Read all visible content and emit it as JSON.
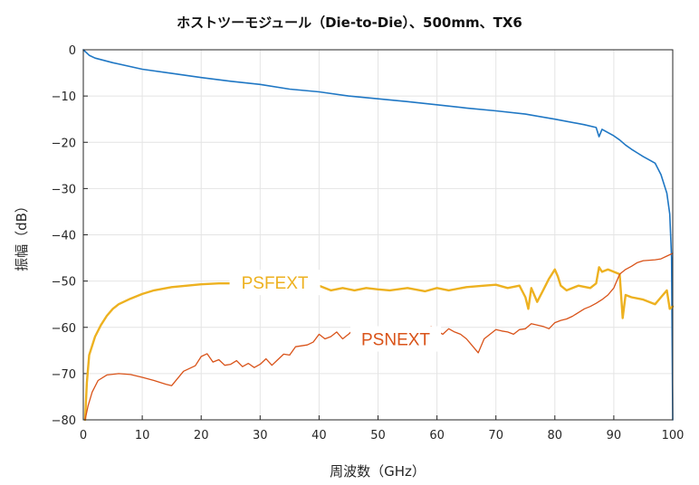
{
  "chart_data": {
    "type": "line",
    "title": "ホストツーモジュール（Die-to-Die）、500mm、TX6",
    "xlabel": "周波数（GHz）",
    "ylabel": "振幅（dB）",
    "xlim": [
      0,
      100
    ],
    "ylim": [
      -80,
      0
    ],
    "xticks": [
      "0",
      "10",
      "20",
      "30",
      "40",
      "50",
      "60",
      "70",
      "80",
      "90",
      "100"
    ],
    "yticks": [
      "0",
      "−10",
      "−20",
      "−30",
      "−40",
      "−50",
      "−60",
      "−70",
      "−80"
    ],
    "grid": true,
    "colors": {
      "il": "#1f77c4",
      "psfext": "#edb120",
      "psnext": "#d95319"
    },
    "annotations": [
      {
        "text": "PSFEXT",
        "series": "psfext",
        "x": 32.5,
        "y": -50.3
      },
      {
        "text": "PSNEXT",
        "series": "psnext",
        "x": 53,
        "y": -62.5
      }
    ],
    "series": [
      {
        "key": "il",
        "color": "#1f77c4",
        "width": 1.6,
        "x": [
          0,
          1,
          2,
          5,
          10,
          15,
          20,
          25,
          30,
          35,
          40,
          45,
          50,
          55,
          60,
          65,
          70,
          75,
          80,
          85,
          87,
          87.5,
          88,
          90,
          91,
          92,
          93,
          94,
          95,
          96,
          97,
          98,
          99,
          99.5,
          99.8,
          100
        ],
        "y": [
          0,
          -1.2,
          -1.8,
          -2.8,
          -4.2,
          -5.1,
          -6.0,
          -6.8,
          -7.5,
          -8.5,
          -9.1,
          -10.0,
          -10.6,
          -11.2,
          -11.9,
          -12.6,
          -13.2,
          -13.9,
          -15.0,
          -16.2,
          -16.8,
          -18.8,
          -17.2,
          -18.6,
          -19.5,
          -20.6,
          -21.5,
          -22.3,
          -23.1,
          -23.8,
          -24.5,
          -27.0,
          -31.0,
          -35.5,
          -45.0,
          -80.0
        ]
      },
      {
        "key": "psfext",
        "color": "#edb120",
        "width": 2.4,
        "x": [
          0.3,
          0.6,
          1,
          2,
          3,
          4,
          5,
          6,
          8,
          10,
          12,
          15,
          20,
          23,
          28,
          35,
          38,
          40,
          42,
          44,
          46,
          48,
          50,
          52,
          55,
          58,
          60,
          62,
          65,
          68,
          70,
          72,
          74,
          75,
          75.5,
          76,
          77,
          78,
          79,
          80,
          80.5,
          81,
          82,
          84,
          86,
          87,
          87.5,
          88,
          89,
          90,
          91,
          91.5,
          92,
          93,
          95,
          97,
          98,
          99,
          99.5,
          100
        ],
        "y": [
          -80,
          -72,
          -66,
          -62,
          -59.5,
          -57.5,
          -56,
          -55,
          -53.8,
          -52.8,
          -52.0,
          -51.3,
          -50.7,
          -50.5,
          -50.5,
          -51.0,
          -51.3,
          -51.0,
          -52.0,
          -51.5,
          -52.0,
          -51.5,
          -51.8,
          -52.0,
          -51.5,
          -52.2,
          -51.5,
          -52.0,
          -51.3,
          -51.0,
          -50.8,
          -51.5,
          -51.0,
          -53.5,
          -56.0,
          -51.5,
          -54.5,
          -52.0,
          -49.5,
          -47.5,
          -49.0,
          -51.0,
          -52.0,
          -51.0,
          -51.5,
          -50.5,
          -47.0,
          -48.0,
          -47.5,
          -48.0,
          -48.5,
          -58.0,
          -53.0,
          -53.5,
          -54.0,
          -55.0,
          -53.5,
          -52.0,
          -56.0,
          -55.5
        ]
      },
      {
        "key": "psnext",
        "color": "#d95319",
        "width": 1.3,
        "x": [
          0.3,
          0.8,
          1.5,
          2.5,
          4,
          6,
          8,
          10,
          12,
          14,
          15,
          17,
          19,
          20,
          21,
          22,
          23,
          24,
          25,
          26,
          27,
          28,
          29,
          30,
          31,
          32,
          33,
          34,
          35,
          36,
          37,
          38,
          39,
          40,
          41,
          42,
          43,
          44,
          45,
          46,
          47,
          48,
          49,
          50,
          51,
          52,
          53,
          54,
          55,
          56,
          57,
          58,
          59,
          60,
          61,
          62,
          63,
          64,
          65,
          66,
          67,
          68,
          69,
          70,
          71,
          72,
          73,
          74,
          75,
          76,
          77,
          78,
          79,
          80,
          81,
          82,
          83,
          84,
          85,
          86,
          87,
          88,
          89,
          90,
          91,
          92,
          93,
          94,
          95,
          96,
          97,
          98,
          99,
          100
        ],
        "y": [
          -80,
          -77,
          -74,
          -71.5,
          -70.3,
          -70,
          -70.2,
          -70.8,
          -71.5,
          -72.3,
          -72.6,
          -69.5,
          -68.3,
          -66.3,
          -65.7,
          -67.5,
          -67.0,
          -68.2,
          -68.0,
          -67.2,
          -68.5,
          -67.8,
          -68.7,
          -68.0,
          -66.8,
          -68.2,
          -67.0,
          -65.8,
          -66.0,
          -64.2,
          -64.0,
          -63.8,
          -63.2,
          -61.5,
          -62.5,
          -62.0,
          -61.0,
          -62.5,
          -61.5,
          -60.3,
          -60.5,
          -61.5,
          -61.3,
          -61.0,
          -61.5,
          -61.0,
          -62.0,
          -61.0,
          -60.5,
          -61.5,
          -60.5,
          -61.0,
          -59.8,
          -60.8,
          -61.5,
          -60.3,
          -61.0,
          -61.5,
          -62.5,
          -64.0,
          -65.5,
          -62.5,
          -61.5,
          -60.5,
          -60.8,
          -61.0,
          -61.5,
          -60.5,
          -60.3,
          -59.2,
          -59.5,
          -59.8,
          -60.3,
          -59.0,
          -58.5,
          -58.2,
          -57.6,
          -56.8,
          -56.0,
          -55.5,
          -54.8,
          -54.0,
          -53.0,
          -51.5,
          -48.5,
          -47.5,
          -46.8,
          -46.0,
          -45.6,
          -45.5,
          -45.4,
          -45.2,
          -44.6,
          -44.0
        ]
      }
    ]
  }
}
